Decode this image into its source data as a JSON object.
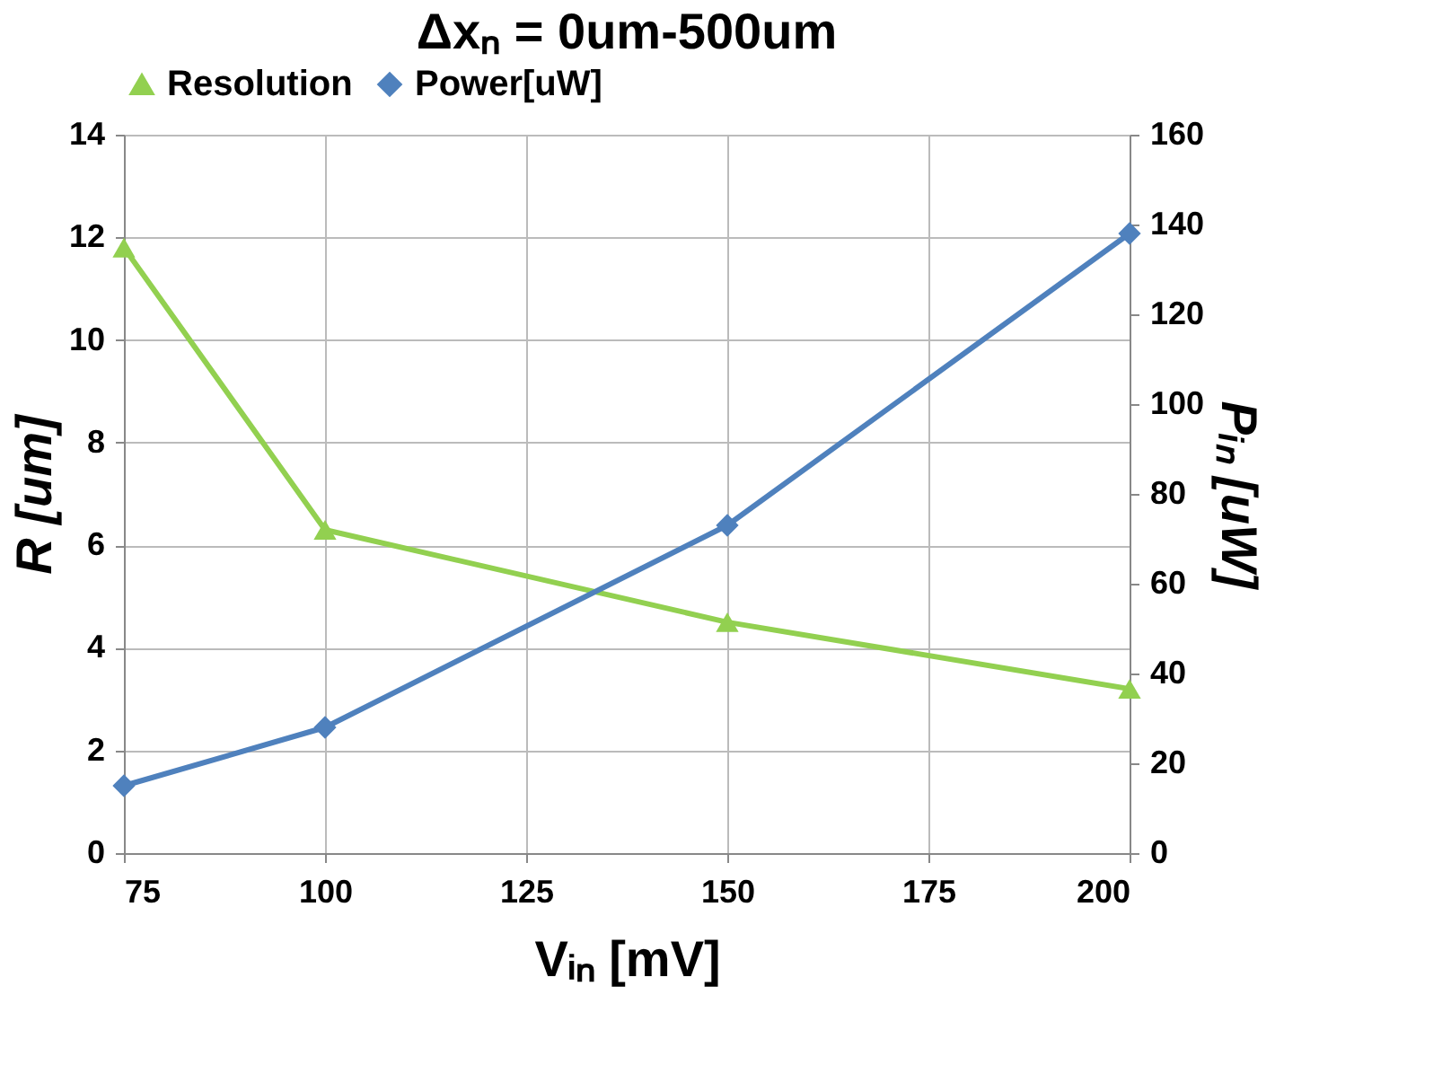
{
  "chart_data": {
    "type": "line",
    "title": "Δxₙ = 0um-500um",
    "xlabel": "Vᵢₙ [mV]",
    "ylabel": "R [um]",
    "y2label": "Pᵢₙ [uW]",
    "x": [
      75,
      100,
      150,
      200
    ],
    "series": [
      {
        "name": "Resolution",
        "color": "#92d050",
        "marker": "triangle",
        "values": [
          11.8,
          6.3,
          4.5,
          3.2
        ]
      },
      {
        "name": "Power[uW]",
        "color": "#4f81bd",
        "marker": "diamond",
        "axis": "y2",
        "values": [
          15,
          28,
          73,
          138
        ]
      }
    ],
    "xlim": [
      75,
      200
    ],
    "xticks": [
      75,
      100,
      125,
      150,
      175,
      200
    ],
    "ylim": [
      0,
      14
    ],
    "yticks": [
      0,
      2,
      4,
      6,
      8,
      10,
      12,
      14
    ],
    "y2lim": [
      0,
      160
    ],
    "y2ticks": [
      0,
      20,
      40,
      60,
      80,
      100,
      120,
      140,
      160
    ],
    "grid": true,
    "legend": "top",
    "line_style": "solid"
  }
}
